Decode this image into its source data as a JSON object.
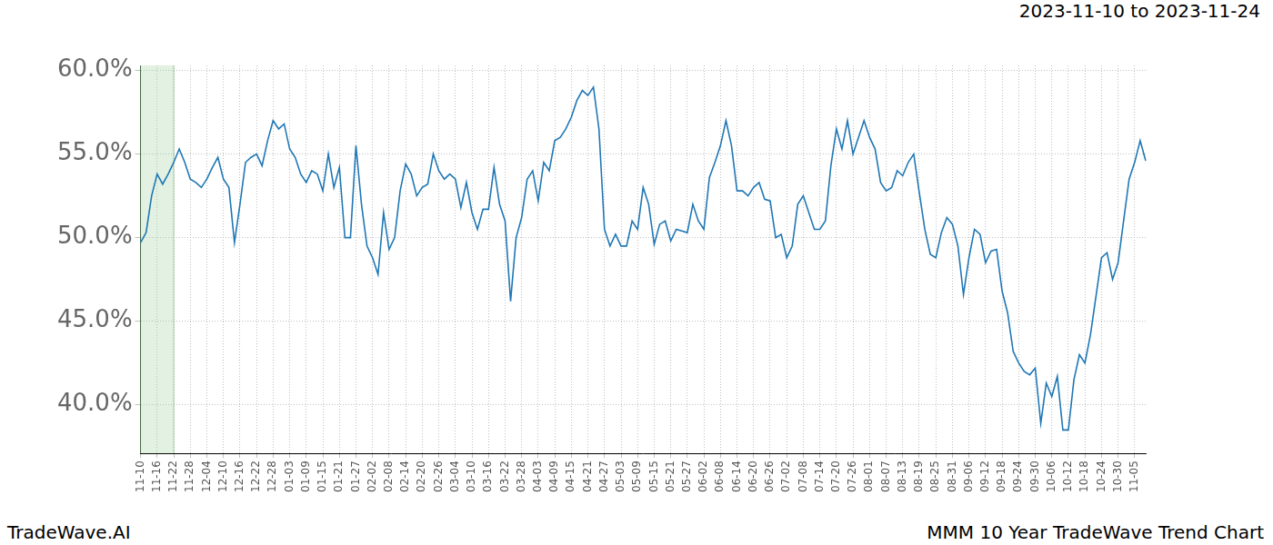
{
  "chart_data": {
    "type": "line",
    "title": "2023-11-10 to 2023-11-24",
    "subtitle": "MMM 10 Year TradeWave Trend Chart",
    "annotations": [
      "TradeWave.AI"
    ],
    "highlight": [
      "11-10",
      "11-22"
    ],
    "categories": [
      "11-10",
      null,
      null,
      "11-16",
      null,
      null,
      "11-22",
      null,
      null,
      "11-28",
      null,
      null,
      "12-04",
      null,
      null,
      "12-10",
      null,
      null,
      "12-16",
      null,
      null,
      "12-22",
      null,
      null,
      "12-28",
      null,
      null,
      "01-03",
      null,
      null,
      "01-09",
      null,
      null,
      "01-15",
      null,
      null,
      "01-21",
      null,
      null,
      "01-27",
      null,
      null,
      "02-02",
      null,
      null,
      "02-08",
      null,
      null,
      "02-14",
      null,
      null,
      "02-20",
      null,
      null,
      "02-26",
      null,
      null,
      "03-04",
      null,
      null,
      "03-10",
      null,
      null,
      "03-16",
      null,
      null,
      "03-22",
      null,
      null,
      "03-28",
      null,
      null,
      "04-03",
      null,
      null,
      "04-09",
      null,
      null,
      "04-15",
      null,
      null,
      "04-21",
      null,
      null,
      "04-27",
      null,
      null,
      "05-03",
      null,
      null,
      "05-09",
      null,
      null,
      "05-15",
      null,
      null,
      "05-21",
      null,
      null,
      "05-27",
      null,
      null,
      "06-02",
      null,
      null,
      "06-08",
      null,
      null,
      "06-14",
      null,
      null,
      "06-20",
      null,
      null,
      "06-26",
      null,
      null,
      "07-02",
      null,
      null,
      "07-08",
      null,
      null,
      "07-14",
      null,
      null,
      "07-20",
      null,
      null,
      "07-26",
      null,
      null,
      "08-01",
      null,
      null,
      "08-07",
      null,
      null,
      "08-13",
      null,
      null,
      "08-19",
      null,
      null,
      "08-25",
      null,
      null,
      "08-31",
      null,
      null,
      "09-06",
      null,
      null,
      "09-12",
      null,
      null,
      "09-18",
      null,
      null,
      "09-24",
      null,
      null,
      "09-30",
      null,
      null,
      "10-06",
      null,
      null,
      "10-12",
      null,
      null,
      "10-18",
      null,
      null,
      "10-24",
      null,
      null,
      "10-30",
      null,
      null,
      "11-05",
      null,
      null
    ],
    "values": [
      49.7,
      50.3,
      52.5,
      53.8,
      53.2,
      53.8,
      54.5,
      55.3,
      54.5,
      53.5,
      53.3,
      53.0,
      53.5,
      54.2,
      54.8,
      53.5,
      53.0,
      49.7,
      52.0,
      54.5,
      54.8,
      55.0,
      54.3,
      55.8,
      57.0,
      56.5,
      56.8,
      55.3,
      54.8,
      53.8,
      53.3,
      54.0,
      53.8,
      52.8,
      55.0,
      53.0,
      54.2,
      50.0,
      50.0,
      55.5,
      52.0,
      49.5,
      48.8,
      47.8,
      51.5,
      49.3,
      50.0,
      52.8,
      54.4,
      53.8,
      52.5,
      53.0,
      53.2,
      55.0,
      54.0,
      53.5,
      53.8,
      53.5,
      51.8,
      53.3,
      51.5,
      50.5,
      51.7,
      51.7,
      54.2,
      52.0,
      51.0,
      46.2,
      50.0,
      51.2,
      53.5,
      54.0,
      52.2,
      54.5,
      54.0,
      55.8,
      56.0,
      56.5,
      57.2,
      58.2,
      58.8,
      58.5,
      59.0,
      56.5,
      50.5,
      49.5,
      50.2,
      49.5,
      49.5,
      51.0,
      50.5,
      53.0,
      52.0,
      49.6,
      50.8,
      51.0,
      49.8,
      50.5,
      50.4,
      50.3,
      52.0,
      51.0,
      50.5,
      53.6,
      54.5,
      55.5,
      57.0,
      55.5,
      52.8,
      52.8,
      52.5,
      53.0,
      53.3,
      52.3,
      52.2,
      50.0,
      50.2,
      48.8,
      49.5,
      52.0,
      52.5,
      51.5,
      50.5,
      50.5,
      51.0,
      54.3,
      56.5,
      55.3,
      57.0,
      55.0,
      56.0,
      57.0,
      56.0,
      55.3,
      53.3,
      52.8,
      53.0,
      54.0,
      53.7,
      54.5,
      55.0,
      52.7,
      50.5,
      49.0,
      48.8,
      50.3,
      51.2,
      50.8,
      49.5,
      46.6,
      48.8,
      50.5,
      50.2,
      48.5,
      49.2,
      49.3,
      46.8,
      45.5,
      43.2,
      42.5,
      42.0,
      41.8,
      42.2,
      38.9,
      41.3,
      40.5,
      41.7,
      38.5,
      38.5,
      41.5,
      43.0,
      42.5,
      44.2,
      46.5,
      48.8,
      49.1,
      47.5,
      48.5,
      51.0,
      53.5,
      54.5,
      55.8,
      54.6
    ],
    "color": "#1f77b4",
    "ylim": [
      37.1,
      60.3
    ],
    "yticks": [
      {
        "value": 40,
        "label": "40.0%"
      },
      {
        "value": 45,
        "label": "45.0%"
      },
      {
        "value": 50,
        "label": "50.0%"
      },
      {
        "value": 55,
        "label": "55.0%"
      },
      {
        "value": 60,
        "label": "60.0%"
      }
    ],
    "grid": true
  }
}
